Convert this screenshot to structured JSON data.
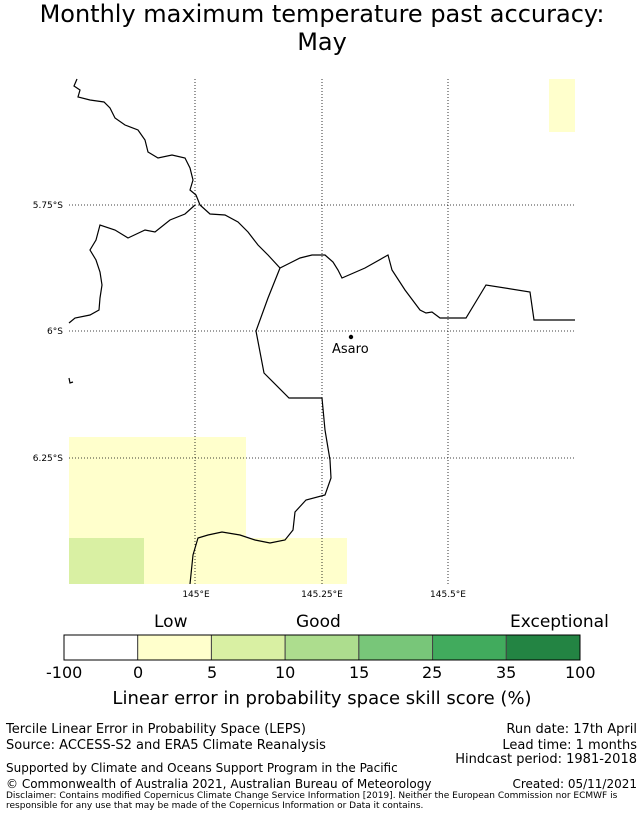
{
  "title_line1": "Monthly maximum temperature past accuracy:",
  "title_line2": "May",
  "map": {
    "lat_ticks": [
      "5.75°S",
      "6°S",
      "6.25°S"
    ],
    "lon_ticks": [
      "145°E",
      "145.25°E",
      "145.5°E"
    ],
    "location_label": "Asaro",
    "cells": [
      {
        "lon": [
          145.71,
          145.76
        ],
        "lat": [
          -5.65,
          -5.55
        ],
        "category": "0-5"
      },
      {
        "lon": [
          144.75,
          145.1
        ],
        "lat": [
          -6.51,
          -6.21
        ],
        "category": "0-5"
      },
      {
        "lon": [
          144.75,
          144.9
        ],
        "lat": [
          -6.6,
          -6.51
        ],
        "category": "5-10"
      },
      {
        "lon": [
          144.9,
          145.3
        ],
        "lat": [
          -6.6,
          -6.51
        ],
        "category": "0-5"
      },
      {
        "lon": [
          145.1,
          145.3
        ],
        "lat": [
          -6.51,
          -6.51
        ],
        "category": "0-5"
      }
    ]
  },
  "colorbar": {
    "category_labels": [
      "Low",
      "Good",
      "Exceptional"
    ],
    "ticks": [
      "-100",
      "0",
      "5",
      "10",
      "15",
      "25",
      "35",
      "100"
    ],
    "colors": [
      "#ffffff",
      "#ffffcc",
      "#d9f0a3",
      "#addd8e",
      "#78c679",
      "#41ab5d",
      "#238443"
    ],
    "xlabel": "Linear error in probability space skill score (%)"
  },
  "footer": {
    "left1": "Tercile Linear Error in Probability Space (LEPS)",
    "left2": "Source: ACCESS-S2 and ERA5 Climate Reanalysis",
    "right1": "Run date: 17th April",
    "right2": "Lead time: 1 months",
    "right3": "Hindcast period: 1981-2018",
    "supported": "Supported by Climate and Oceans Support Program in the Pacific",
    "copyright": "© Commonwealth of Australia 2021, Australian Bureau of Meteorology",
    "created": "Created: 05/11/2021",
    "disclaimer1": "Disclaimer: Contains modified Copernicus Climate Change Service Information [2019]. Neither the European Commission nor ECMWF is",
    "disclaimer2": "responsible for any use that may be made of the Copernicus Information or Data it contains."
  }
}
